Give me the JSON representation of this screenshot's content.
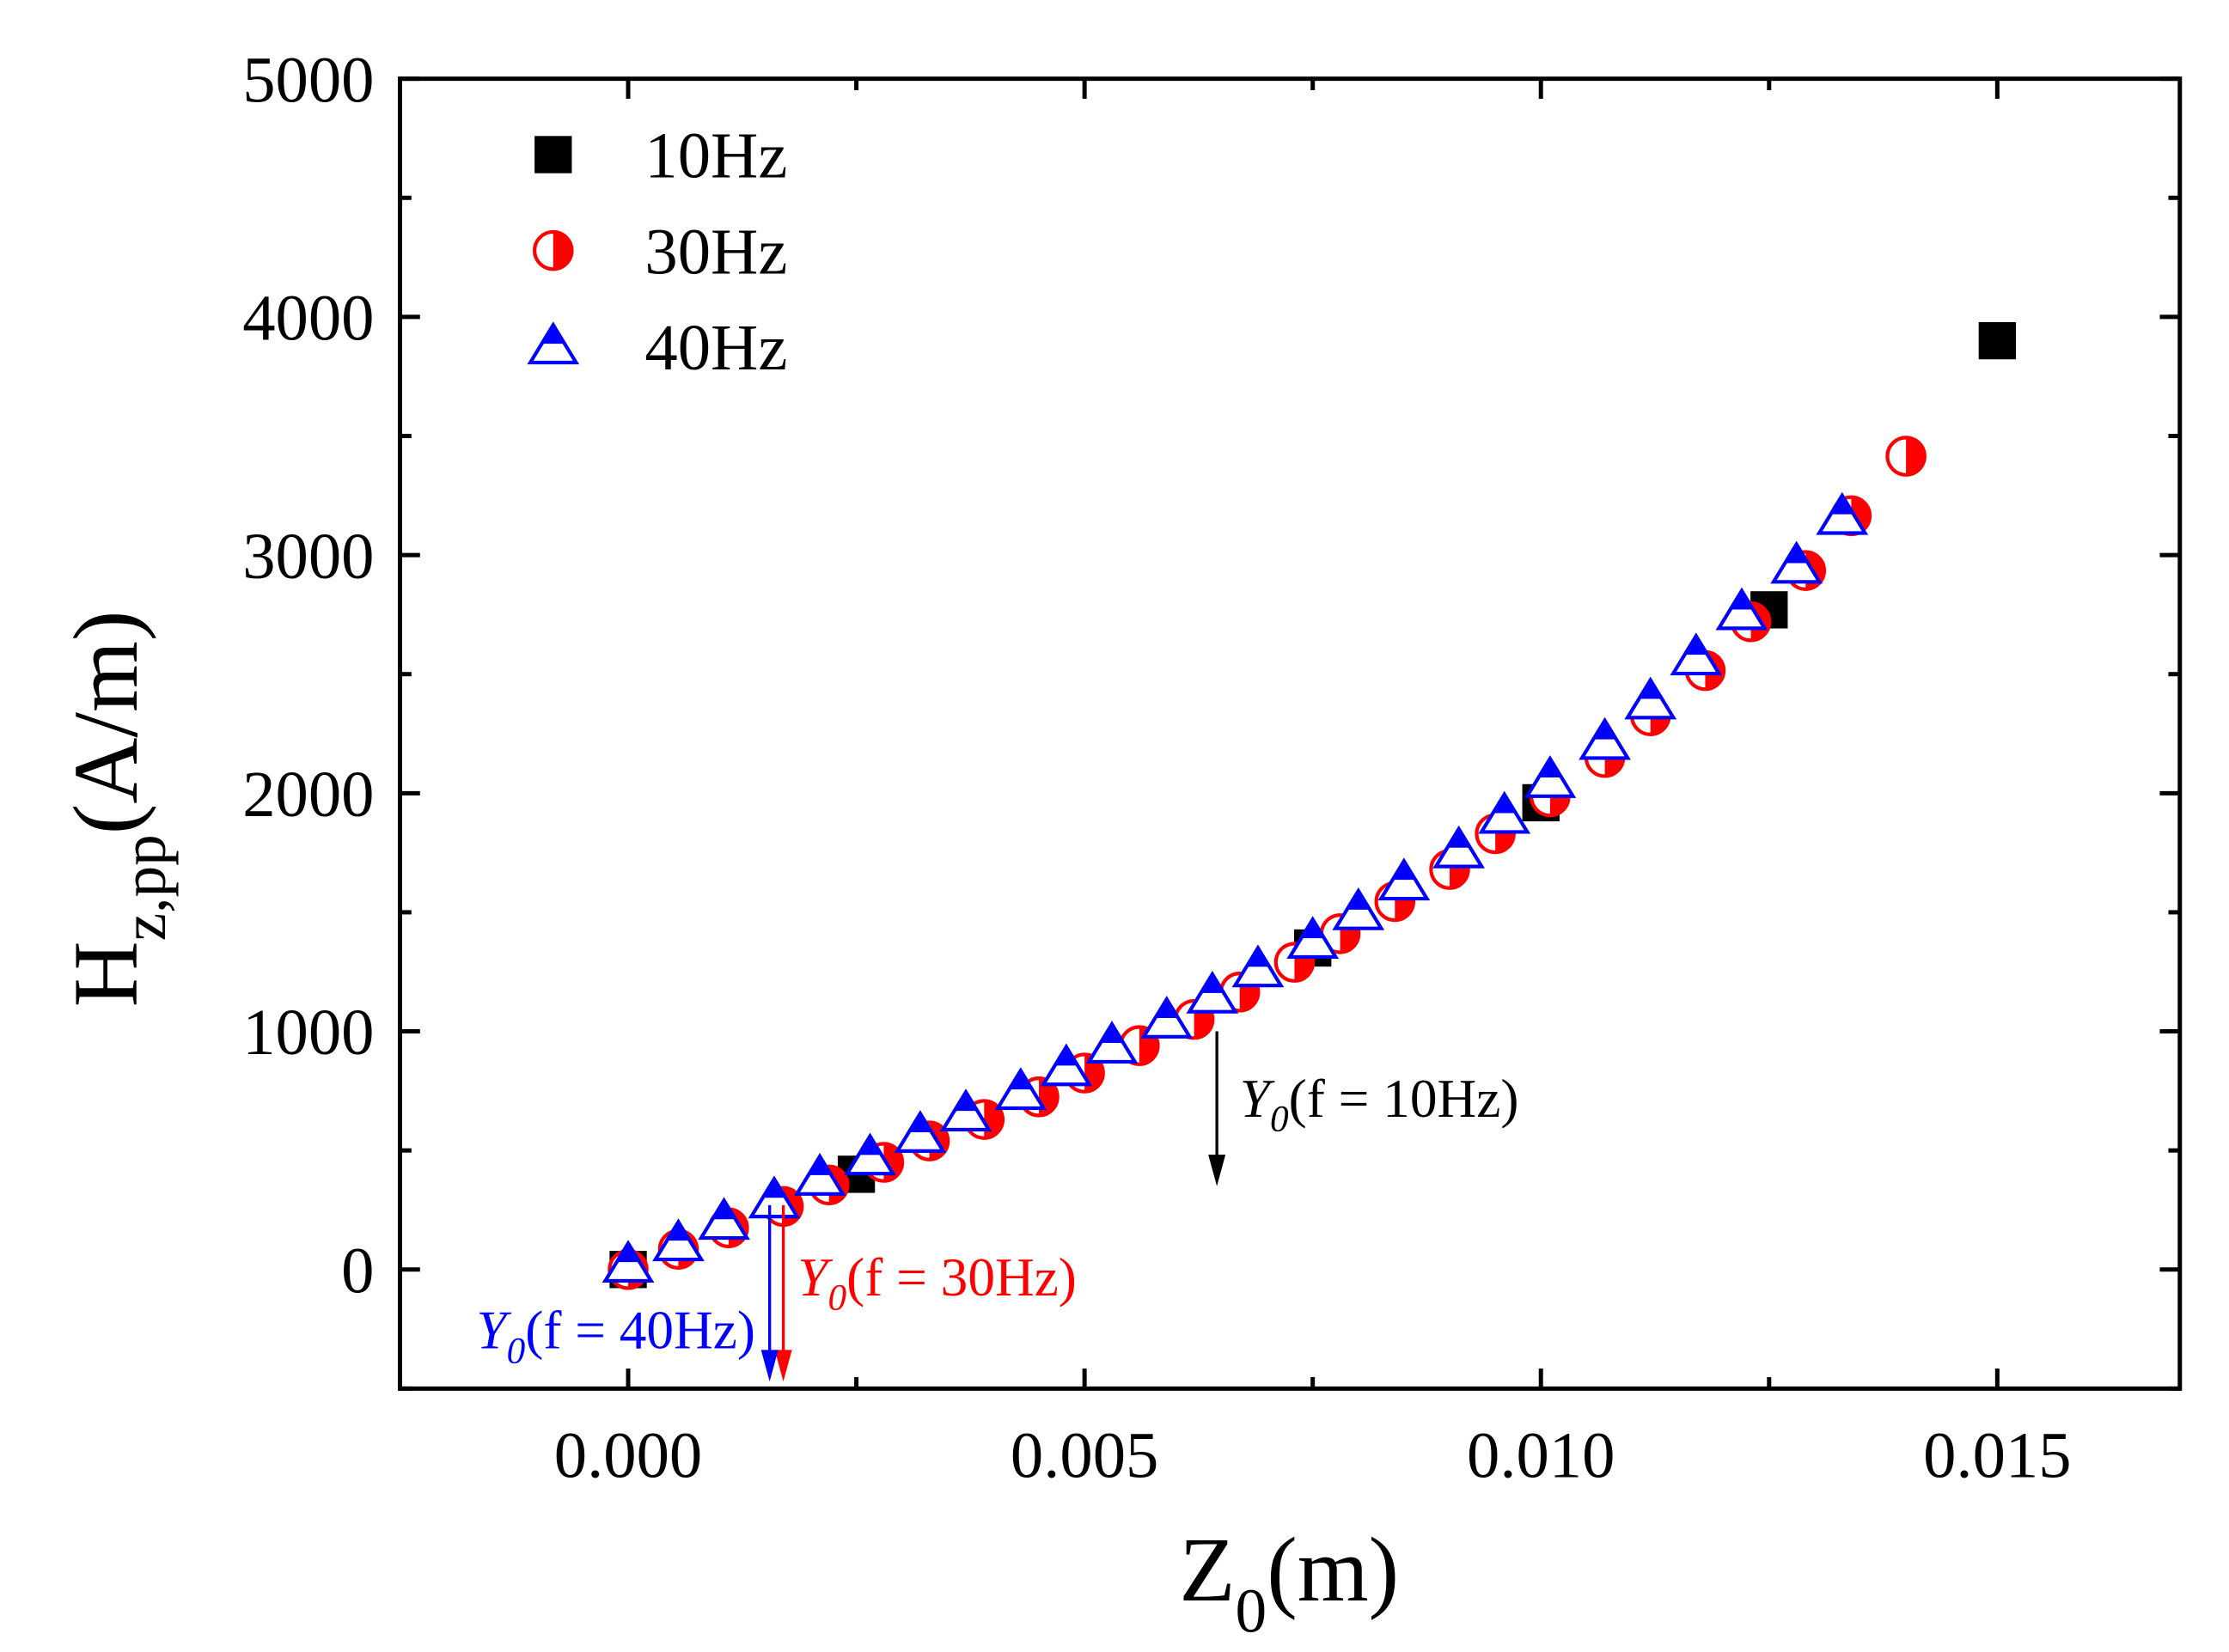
{
  "chart_data": {
    "type": "scatter",
    "title": "",
    "xlabel": {
      "main": "Z",
      "sub": "0",
      "unit": "(m)"
    },
    "ylabel": {
      "main": "H",
      "sub": "z,pp",
      "unit": "(A/m)"
    },
    "xlim": [
      -0.0025,
      0.017
    ],
    "ylim": [
      -500,
      5000
    ],
    "xticks": [
      {
        "value": 0.0,
        "label": "0.000"
      },
      {
        "value": 0.005,
        "label": "0.005"
      },
      {
        "value": 0.01,
        "label": "0.010"
      },
      {
        "value": 0.015,
        "label": "0.015"
      }
    ],
    "yticks": [
      {
        "value": 0,
        "label": "0"
      },
      {
        "value": 1000,
        "label": "1000"
      },
      {
        "value": 2000,
        "label": "2000"
      },
      {
        "value": 3000,
        "label": "3000"
      },
      {
        "value": 4000,
        "label": "4000"
      },
      {
        "value": 5000,
        "label": "5000"
      }
    ],
    "legend_position": "top-left",
    "series": [
      {
        "name": "10Hz",
        "marker": "square-filled",
        "color": "#000000",
        "points": [
          [
            0.0,
            0
          ],
          [
            0.0025,
            400
          ],
          [
            0.0075,
            1350
          ],
          [
            0.01,
            1960
          ],
          [
            0.0125,
            2770
          ],
          [
            0.015,
            3900
          ]
        ]
      },
      {
        "name": "30Hz",
        "marker": "circle-half",
        "color": "#ff0000",
        "points": [
          [
            0.0,
            0
          ],
          [
            0.00055,
            85
          ],
          [
            0.0011,
            175
          ],
          [
            0.0017,
            265
          ],
          [
            0.0022,
            355
          ],
          [
            0.0028,
            450
          ],
          [
            0.0033,
            540
          ],
          [
            0.0039,
            630
          ],
          [
            0.0045,
            725
          ],
          [
            0.005,
            825
          ],
          [
            0.0056,
            940
          ],
          [
            0.0062,
            1050
          ],
          [
            0.0067,
            1165
          ],
          [
            0.0073,
            1290
          ],
          [
            0.0078,
            1410
          ],
          [
            0.0084,
            1545
          ],
          [
            0.009,
            1680
          ],
          [
            0.0095,
            1830
          ],
          [
            0.0101,
            1985
          ],
          [
            0.0107,
            2150
          ],
          [
            0.0112,
            2325
          ],
          [
            0.0118,
            2515
          ],
          [
            0.0123,
            2720
          ],
          [
            0.0129,
            2935
          ],
          [
            0.0134,
            3165
          ],
          [
            0.014,
            3415
          ]
        ]
      },
      {
        "name": "40Hz",
        "marker": "triangle-half",
        "color": "#0000ff",
        "points": [
          [
            0.0,
            20
          ],
          [
            0.00055,
            110
          ],
          [
            0.00105,
            200
          ],
          [
            0.0016,
            290
          ],
          [
            0.0021,
            385
          ],
          [
            0.00265,
            470
          ],
          [
            0.0032,
            565
          ],
          [
            0.0037,
            655
          ],
          [
            0.0043,
            745
          ],
          [
            0.0048,
            845
          ],
          [
            0.0053,
            940
          ],
          [
            0.0059,
            1045
          ],
          [
            0.0064,
            1150
          ],
          [
            0.0069,
            1260
          ],
          [
            0.0075,
            1380
          ],
          [
            0.008,
            1500
          ],
          [
            0.0085,
            1625
          ],
          [
            0.0091,
            1760
          ],
          [
            0.0096,
            1905
          ],
          [
            0.0101,
            2055
          ],
          [
            0.0107,
            2215
          ],
          [
            0.0112,
            2385
          ],
          [
            0.0117,
            2570
          ],
          [
            0.0122,
            2760
          ],
          [
            0.0128,
            2955
          ],
          [
            0.0133,
            3160
          ]
        ]
      }
    ],
    "annotations": [
      {
        "name": "annotation-10hz",
        "italic_label": "Y",
        "sub": "0",
        "text": "(f = 10Hz)",
        "color": "#000000",
        "x": 0.00645,
        "y_from": 1000,
        "y_to": 350
      },
      {
        "name": "annotation-30hz",
        "italic_label": "Y",
        "sub": "0",
        "text": "(f = 30Hz)",
        "color": "#ff0000",
        "x": 0.0017,
        "y_from": 270,
        "y_to": -470
      },
      {
        "name": "annotation-40hz",
        "italic_label": "Y",
        "sub": "0",
        "text": "(f = 40Hz)",
        "color": "#0000ff",
        "x": 0.00155,
        "y_from": 270,
        "y_to": -470
      }
    ]
  }
}
